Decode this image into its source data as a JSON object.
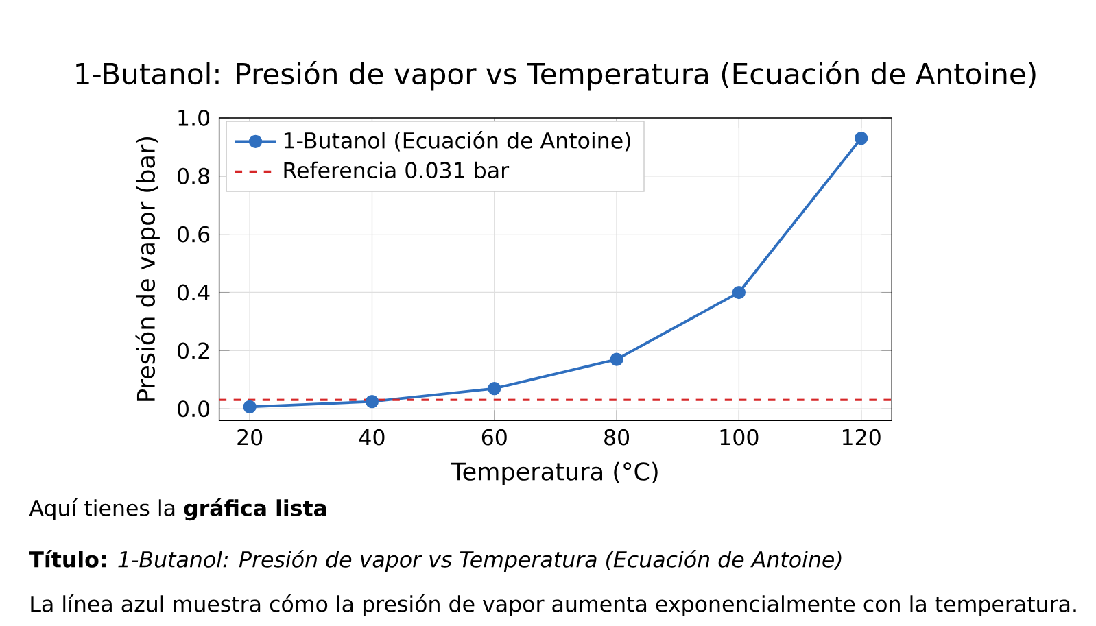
{
  "chart_data": {
    "type": "line",
    "title": "1-Butanol: Presión de vapor vs Temperatura (Ecuación de Antoine)",
    "xlabel": "Temperatura (°C)",
    "ylabel": "Presión de vapor (bar)",
    "x": [
      20,
      40,
      60,
      80,
      100,
      120
    ],
    "series": [
      {
        "name": "1-Butanol (Ecuación de Antoine)",
        "color": "#2f6fbf",
        "values": [
          0.007,
          0.025,
          0.07,
          0.17,
          0.4,
          0.93
        ]
      }
    ],
    "marker": "circle",
    "line_style": "solid",
    "grid": true,
    "legend": "top left",
    "xlim": [
      15,
      125
    ],
    "ylim": [
      -0.04,
      1.0
    ],
    "xticks": [
      20,
      40,
      60,
      80,
      100,
      120
    ],
    "yticks": [
      {
        "value": 0,
        "label": "0.0"
      },
      {
        "value": 0.2,
        "label": "0.2"
      },
      {
        "value": 0.4,
        "label": "0.4"
      },
      {
        "value": 0.6,
        "label": "0.6"
      },
      {
        "value": 0.8,
        "label": "0.8"
      },
      {
        "value": 1.0,
        "label": "1.0"
      }
    ],
    "ref_lines": [
      {
        "axis": "y",
        "value": 0.031,
        "label": "Referencia 0.031 bar",
        "color": "#d62728",
        "line_style": "dashed"
      }
    ],
    "annotations": [
      "Aquí tienes la **gráfica lista**",
      "**Título:** *1-Butanol: Presión de vapor vs Temperatura (Ecuación de Antoine)*",
      "La línea azul muestra cómo la presión de vapor aumenta exponencialmente con la temperatura."
    ]
  }
}
